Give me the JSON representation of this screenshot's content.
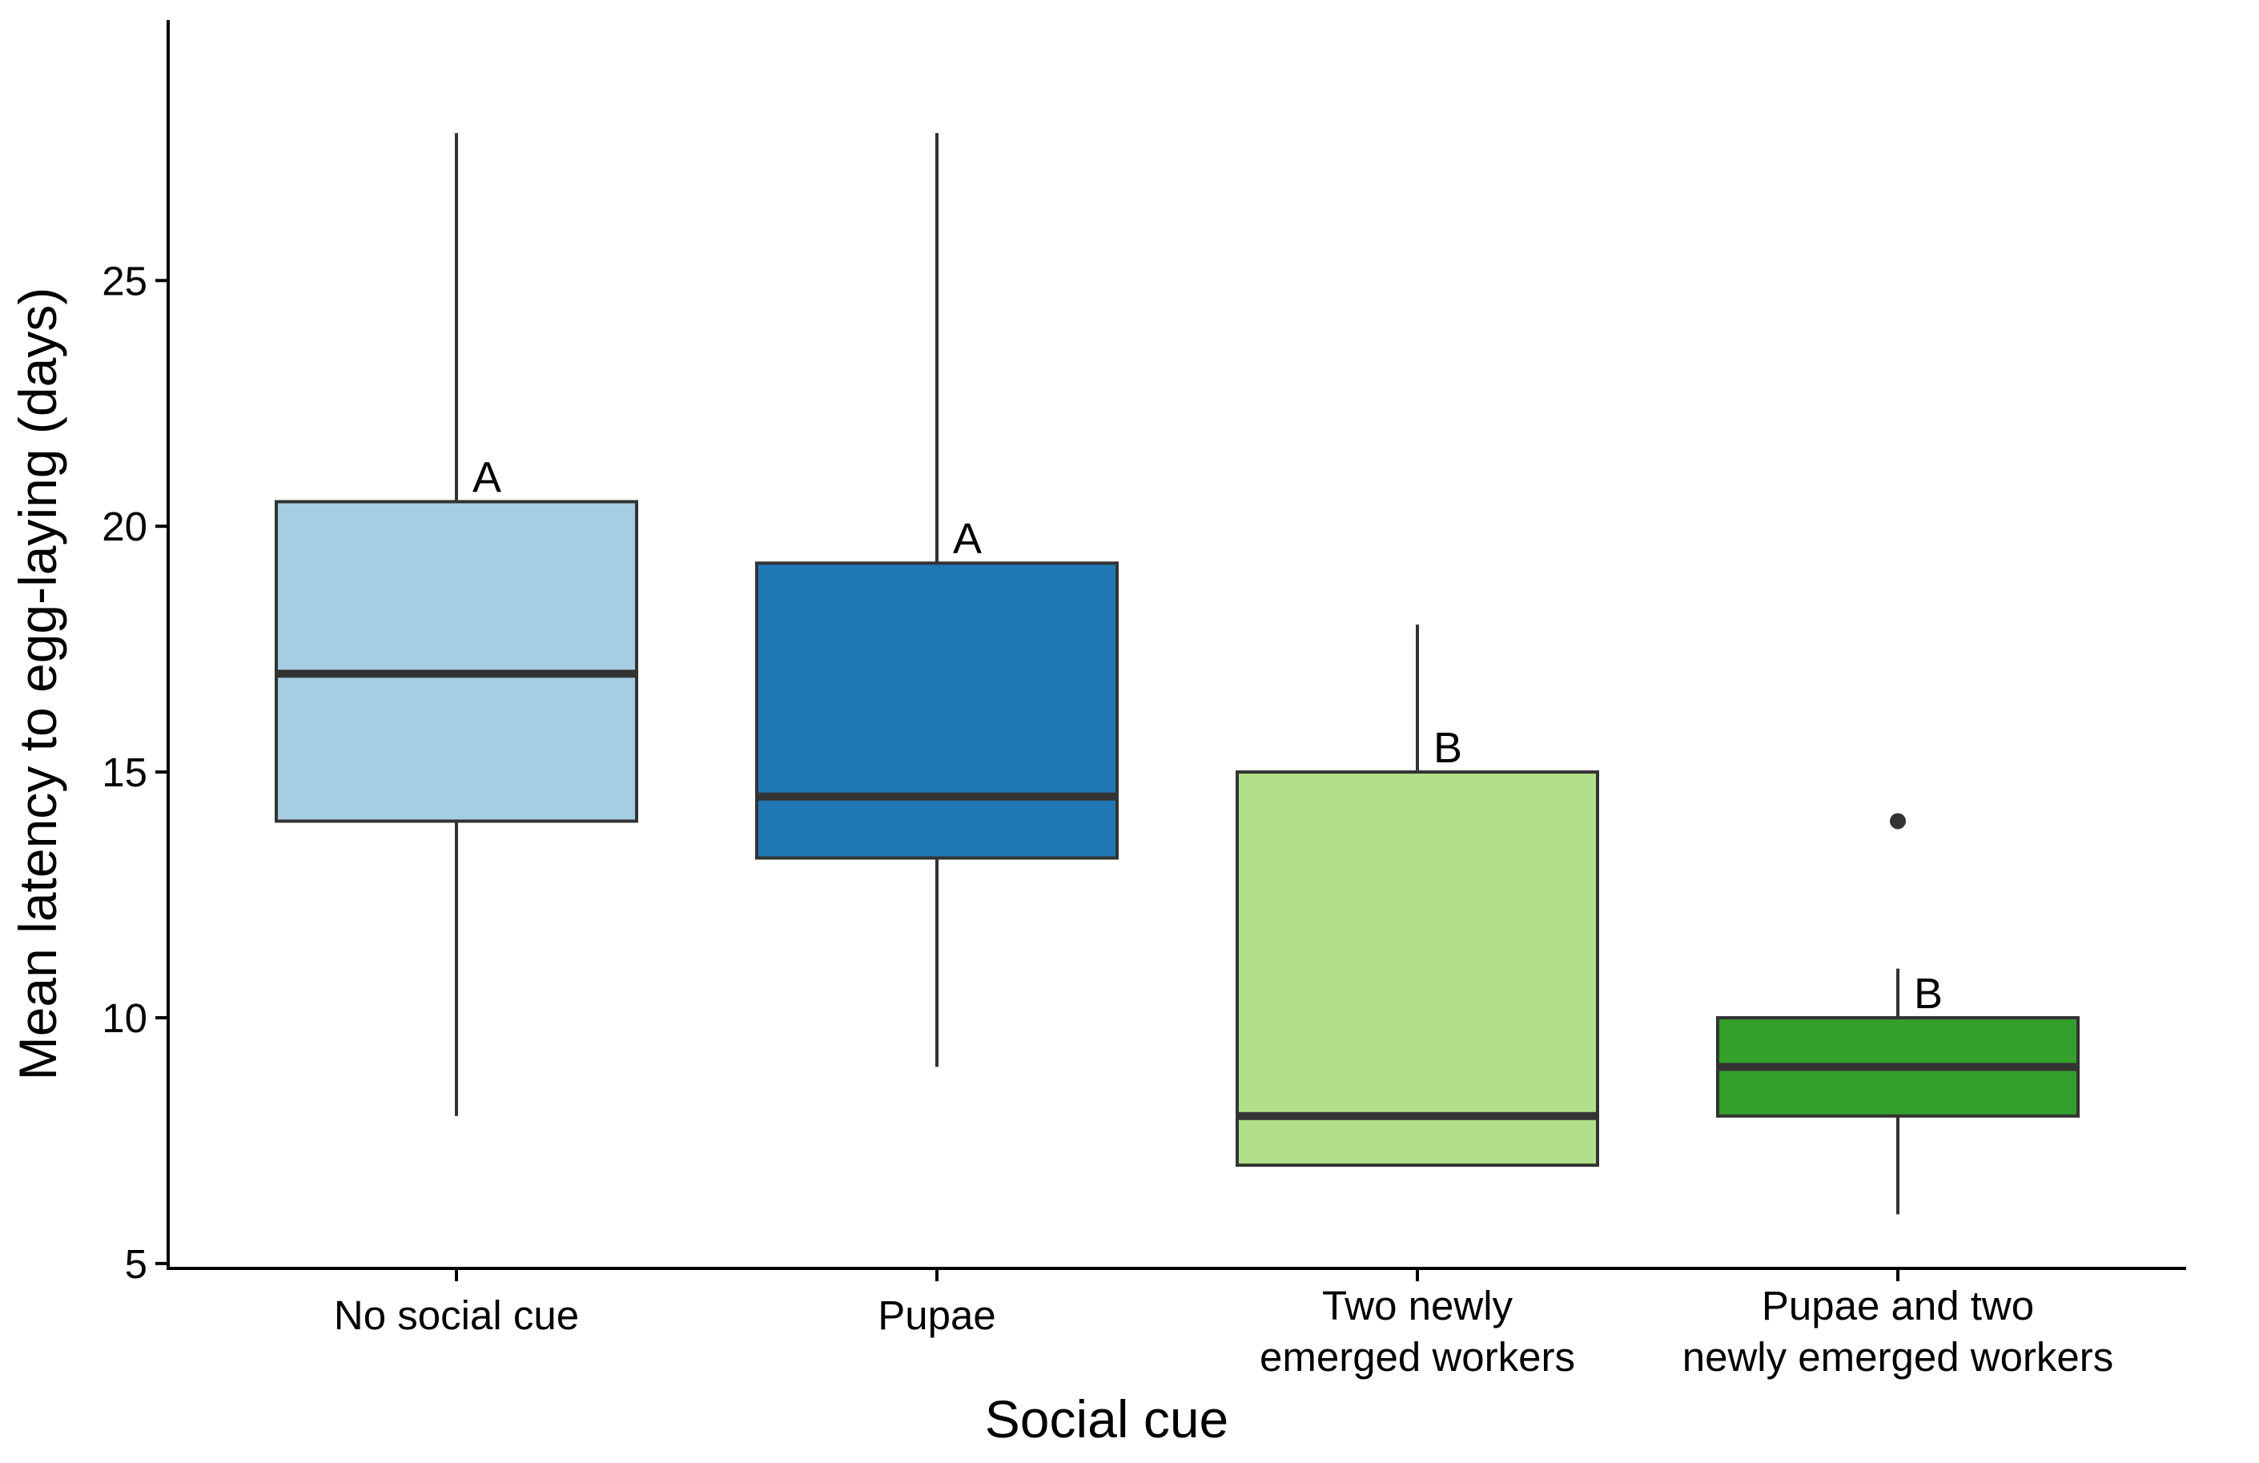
{
  "chart_data": {
    "type": "boxplot",
    "title": "",
    "xlabel": "Social cue",
    "ylabel": "Mean latency to egg-laying (days)",
    "ylim": [
      4.9,
      30.3
    ],
    "yticks": [
      5,
      10,
      15,
      20,
      25
    ],
    "grid": false,
    "legend": "none",
    "categories": [
      {
        "label_lines": [
          "No social cue"
        ],
        "color": "#A6CEE3",
        "whisker_low": 8,
        "q1": 14,
        "median": 17,
        "q3": 20.5,
        "whisker_high": 28,
        "outliers": [],
        "significance": "A"
      },
      {
        "label_lines": [
          "Pupae"
        ],
        "color": "#1F78B4",
        "whisker_low": 9,
        "q1": 13.25,
        "median": 14.5,
        "q3": 19.25,
        "whisker_high": 28,
        "outliers": [],
        "significance": "A"
      },
      {
        "label_lines": [
          "Two newly",
          "emerged workers"
        ],
        "color": "#B2DF8A",
        "whisker_low": 7,
        "q1": 7,
        "median": 8,
        "q3": 15,
        "whisker_high": 18,
        "outliers": [],
        "significance": "B"
      },
      {
        "label_lines": [
          "Pupae and two",
          "newly emerged workers"
        ],
        "color": "#33A02C",
        "whisker_low": 6,
        "q1": 8,
        "median": 9,
        "q3": 10,
        "whisker_high": 11,
        "outliers": [
          14
        ],
        "significance": "B"
      }
    ]
  }
}
